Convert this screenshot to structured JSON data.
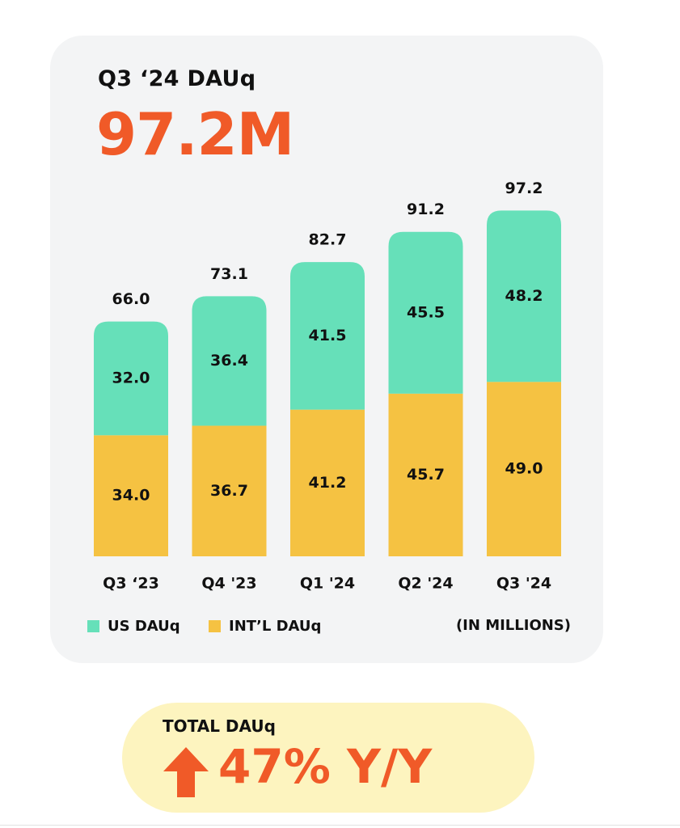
{
  "header": {
    "kpi_label": "Q3 ‘24 DAUq",
    "kpi_value": "97.2M"
  },
  "legend": {
    "us_label": "US DAUq",
    "intl_label": "INT’L DAUq",
    "units": "(IN MILLIONS)"
  },
  "callout": {
    "label": "TOTAL DAUq",
    "value": "47% Y/Y",
    "arrow_icon": "arrow-up-icon"
  },
  "colors": {
    "accent": "#f05a28",
    "us": "#66e0b9",
    "intl": "#f5c242",
    "card_bg": "#f3f4f5",
    "callout_bg": "#fdf4bf",
    "text": "#111111"
  },
  "chart_data": {
    "type": "bar",
    "stacked": true,
    "categories": [
      "Q3 ‘23",
      "Q4 '23",
      "Q1 '24",
      "Q2 '24",
      "Q3 '24"
    ],
    "series": [
      {
        "name": "INT’L DAUq",
        "values": [
          34.0,
          36.7,
          41.2,
          45.7,
          49.0
        ]
      },
      {
        "name": "US DAUq",
        "values": [
          32.0,
          36.4,
          41.5,
          45.5,
          48.2
        ]
      }
    ],
    "totals": [
      66.0,
      73.1,
      82.7,
      91.2,
      97.2
    ],
    "title": "",
    "xlabel": "",
    "ylabel": "",
    "ylim": [
      0,
      100
    ],
    "grid": false,
    "legend_position": "bottom-left"
  }
}
